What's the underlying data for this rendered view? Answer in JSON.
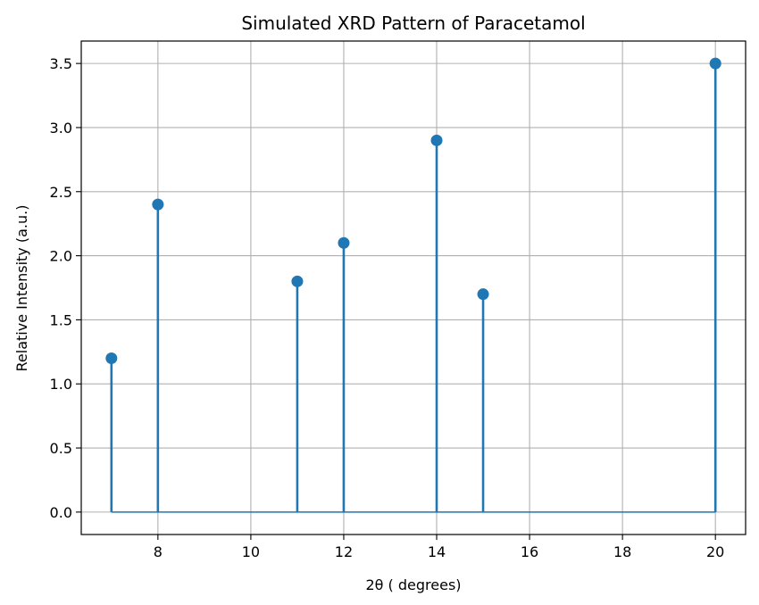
{
  "chart_data": {
    "type": "stem",
    "title": "Simulated XRD Pattern of Paracetamol",
    "xlabel": "2θ ( degrees)",
    "ylabel": "Relative Intensity (a.u.)",
    "x": [
      7,
      8,
      11,
      12,
      14,
      15,
      20
    ],
    "y": [
      1.2,
      2.4,
      1.8,
      2.1,
      2.9,
      1.7,
      3.5
    ],
    "xlim": [
      6.35,
      20.65
    ],
    "ylim": [
      -0.175,
      3.675
    ],
    "xticks": [
      8,
      10,
      12,
      14,
      16,
      18,
      20
    ],
    "yticks": [
      0.0,
      0.5,
      1.0,
      1.5,
      2.0,
      2.5,
      3.0,
      3.5
    ],
    "xtick_labels": [
      "8",
      "10",
      "12",
      "14",
      "16",
      "18",
      "20"
    ],
    "ytick_labels": [
      "0.0",
      "0.5",
      "1.0",
      "1.5",
      "2.0",
      "2.5",
      "3.0",
      "3.5"
    ],
    "grid": true,
    "baseline": 0,
    "color": "#1f77b4"
  }
}
